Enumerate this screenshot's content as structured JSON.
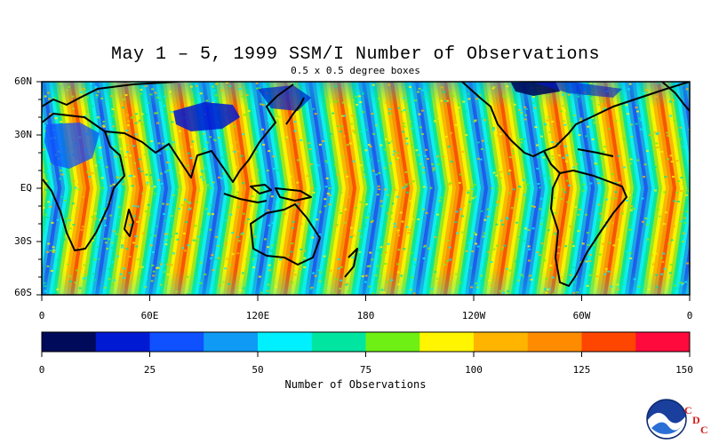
{
  "title": "May 1 – 5, 1999 SSM/I Number of Observations",
  "subtitle": "0.5 x 0.5 degree boxes",
  "colorbar": {
    "title": "Number of Observations",
    "tick_labels": [
      "0",
      "25",
      "50",
      "75",
      "100",
      "125",
      "150"
    ],
    "colors": [
      "#000a5a",
      "#0019d2",
      "#0f50ff",
      "#0f9bf5",
      "#00f0ff",
      "#00e6a0",
      "#6ef014",
      "#fff500",
      "#ffb400",
      "#ff8c00",
      "#ff4600",
      "#ff0a3c"
    ]
  },
  "axes": {
    "y_labels": [
      "60N",
      "30N",
      "EQ",
      "30S",
      "60S"
    ],
    "x_labels": [
      "0",
      "60E",
      "120E",
      "180",
      "120W",
      "60W",
      "0"
    ]
  },
  "logo": {
    "name": "noaa-logo",
    "text": "NOAA",
    "letters": [
      "C",
      "D",
      "C"
    ]
  },
  "map_data": {
    "variable": "SSM/I number of observations",
    "units": "count per 0.5 x 0.5 degree box",
    "lat_range": [
      -60,
      60
    ],
    "lon_range": [
      0,
      360
    ],
    "value_range": [
      0,
      150
    ]
  }
}
